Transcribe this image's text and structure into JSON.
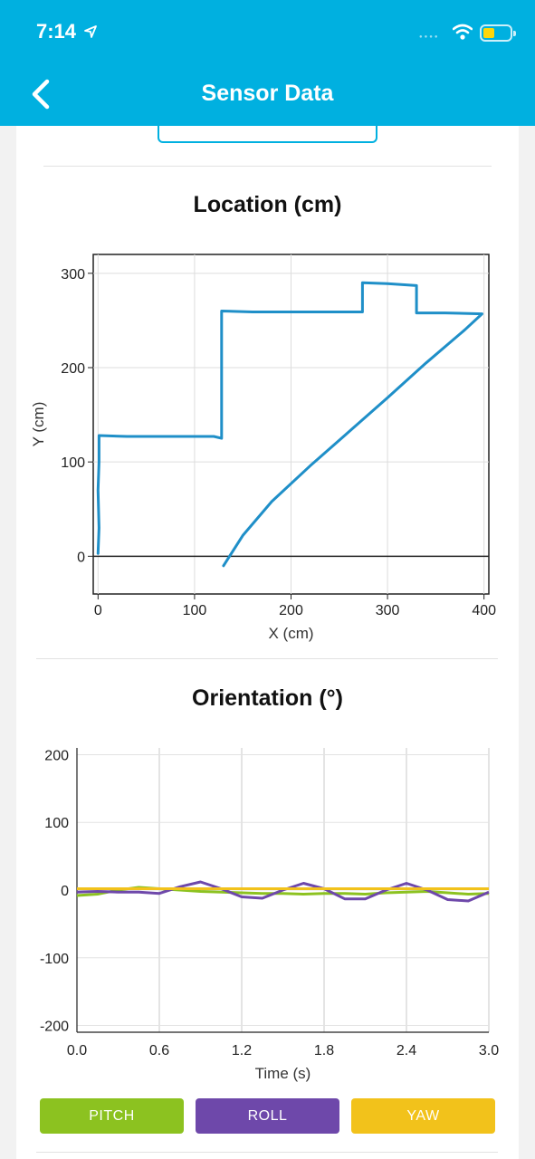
{
  "status_bar": {
    "time": "7:14"
  },
  "nav": {
    "title": "Sensor Data"
  },
  "location_chart": {
    "title": "Location (cm)",
    "chart_data": {
      "type": "line",
      "xlabel": "X (cm)",
      "ylabel": "Y (cm)",
      "xlim": [
        -5,
        405
      ],
      "ylim": [
        -40,
        320
      ],
      "xticks": [
        "0",
        "100",
        "200",
        "300",
        "400"
      ],
      "yticks": [
        "0",
        "100",
        "200",
        "300"
      ],
      "grid": true,
      "series": [
        {
          "color": "#1f8fc8",
          "points": [
            [
              0,
              3
            ],
            [
              1,
              30
            ],
            [
              0,
              70
            ],
            [
              1,
              100
            ],
            [
              1,
              128
            ],
            [
              30,
              127
            ],
            [
              60,
              127
            ],
            [
              90,
              127
            ],
            [
              120,
              127
            ],
            [
              128,
              125
            ],
            [
              128,
              170
            ],
            [
              128,
              210
            ],
            [
              128,
              260
            ],
            [
              160,
              259
            ],
            [
              200,
              259
            ],
            [
              240,
              259
            ],
            [
              274,
              259
            ],
            [
              274,
              290
            ],
            [
              300,
              289
            ],
            [
              330,
              287
            ],
            [
              330,
              258
            ],
            [
              360,
              258
            ],
            [
              398,
              257
            ],
            [
              380,
              240
            ],
            [
              340,
              205
            ],
            [
              300,
              168
            ],
            [
              260,
              132
            ],
            [
              220,
              96
            ],
            [
              180,
              58
            ],
            [
              150,
              22
            ],
            [
              130,
              -10
            ]
          ]
        }
      ]
    }
  },
  "orientation_chart": {
    "title": "Orientation (°)",
    "chart_data": {
      "type": "line",
      "xlabel": "Time (s)",
      "ylabel": "",
      "xlim": [
        0,
        3.0
      ],
      "ylim": [
        -210,
        210
      ],
      "xticks": [
        "0.0",
        "0.6",
        "1.2",
        "1.8",
        "2.4",
        "3.0"
      ],
      "yticks": [
        "200",
        "100",
        "0",
        "-100",
        "-200"
      ],
      "grid": true,
      "series": [
        {
          "name": "PITCH",
          "color": "#8cc220",
          "x": [
            0,
            0.15,
            0.3,
            0.45,
            0.6,
            0.75,
            0.9,
            1.05,
            1.2,
            1.35,
            1.5,
            1.65,
            1.8,
            1.95,
            2.1,
            2.25,
            2.4,
            2.55,
            2.7,
            2.85,
            3.0
          ],
          "values": [
            -8,
            -6,
            0,
            4,
            2,
            0,
            -2,
            -3,
            -4,
            -5,
            -5,
            -6,
            -5,
            -5,
            -6,
            -4,
            -3,
            -2,
            -4,
            -6,
            -5
          ]
        },
        {
          "name": "ROLL",
          "color": "#6e48aa",
          "x": [
            0,
            0.15,
            0.3,
            0.45,
            0.6,
            0.75,
            0.9,
            1.05,
            1.2,
            1.35,
            1.5,
            1.65,
            1.8,
            1.95,
            2.1,
            2.25,
            2.4,
            2.55,
            2.7,
            2.85,
            3.0
          ],
          "values": [
            -3,
            -2,
            -3,
            -3,
            -5,
            5,
            12,
            2,
            -10,
            -12,
            0,
            10,
            2,
            -13,
            -13,
            0,
            10,
            0,
            -14,
            -16,
            -3
          ]
        },
        {
          "name": "YAW",
          "color": "#f2c21b",
          "x": [
            0,
            0.6,
            1.2,
            1.8,
            2.4,
            3.0
          ],
          "values": [
            2,
            2,
            2,
            2,
            2,
            2
          ]
        }
      ]
    }
  },
  "legend": {
    "pitch": "PITCH",
    "roll": "ROLL",
    "yaw": "YAW"
  },
  "colors": {
    "header": "#00b0e0",
    "pitch": "#8cc220",
    "roll": "#6e48aa",
    "yaw": "#f2c21b",
    "location_line": "#1f8fc8"
  }
}
